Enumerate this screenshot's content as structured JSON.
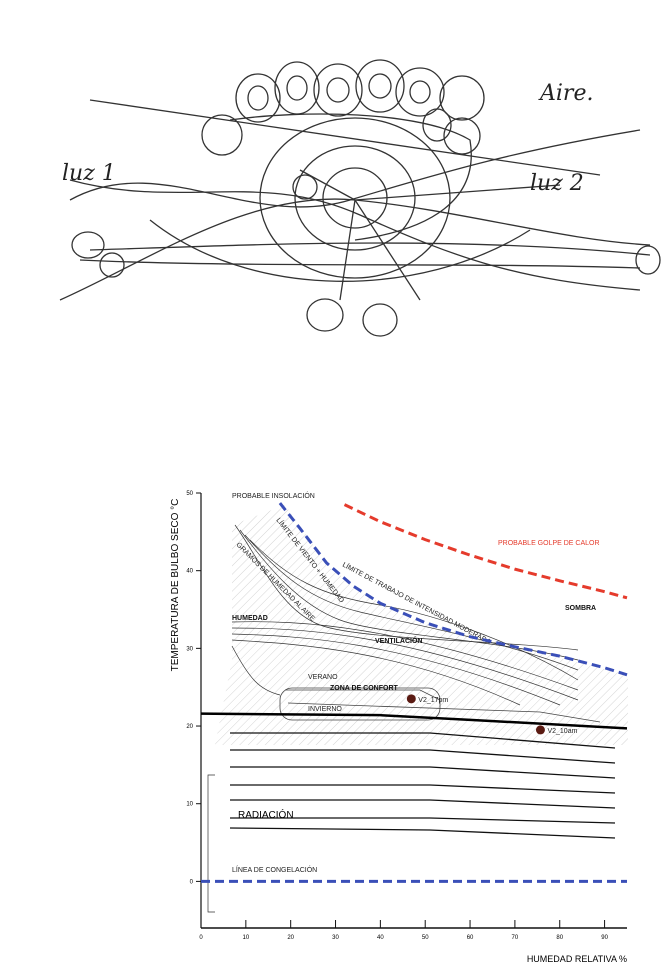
{
  "sketch": {
    "labels": [
      "luz 1",
      "Aire.",
      "luz 2"
    ]
  },
  "chart_data": {
    "type": "line",
    "ylabel": "TEMPERATURA DE BULBO SECO °C",
    "xlabel": "HUMEDAD RELATIVA %",
    "xlim": [
      0,
      95
    ],
    "ylim": [
      -6,
      50
    ],
    "xticks": [
      0,
      10,
      20,
      30,
      40,
      50,
      60,
      70,
      80,
      90
    ],
    "yticks": [
      0,
      10,
      20,
      30,
      40,
      50
    ],
    "series": [
      {
        "name": "PROBABLE GOLPE DE CALOR",
        "color": "#e53b2c",
        "dashed": true,
        "x": [
          32,
          40,
          50,
          60,
          70,
          80,
          90,
          95
        ],
        "values": [
          48.5,
          46.3,
          44,
          42,
          40.2,
          38.7,
          37.3,
          36.5
        ]
      },
      {
        "name": "LÍMITE DE VIENTO + HUMEDAD",
        "color": "#3a4fb8",
        "dashed": true,
        "x": [
          17.6,
          22,
          28,
          34,
          40,
          50,
          60,
          70,
          80,
          90,
          95
        ],
        "values": [
          48.7,
          45.5,
          41,
          38,
          35.8,
          33.3,
          31.5,
          30.2,
          29,
          27.5,
          26.6
        ]
      },
      {
        "color": "#000000",
        "dashed": false,
        "x": [
          0,
          40,
          60,
          95
        ],
        "values": [
          21.6,
          21.4,
          20.8,
          19.7
        ]
      },
      {
        "name": "LÍNEA DE CONGELACIÓN",
        "color": "#3a4fb8",
        "dashed": true,
        "x": [
          0,
          95
        ],
        "values": [
          0,
          0
        ]
      }
    ],
    "points": [
      {
        "label": "V2_17pm",
        "x": 46.9,
        "y": 23.5,
        "color": "#5a1a12"
      },
      {
        "label": "V2_10am",
        "x": 75.7,
        "y": 19.5,
        "color": "#5a1a12"
      }
    ],
    "annotations": [
      "PROBABLE INSOLACIÓN",
      "GRAMOS DE HUMEDAD AL AIRE",
      "LÍMITE DE TRABAJO DE INTENSIDAD MODERADA",
      "HUMEDAD",
      "VENTILACIÓN",
      "SOMBRA",
      "VERANO",
      "ZONA DE CONFORT",
      "INVIERNO",
      "RADIACIÓN"
    ]
  }
}
